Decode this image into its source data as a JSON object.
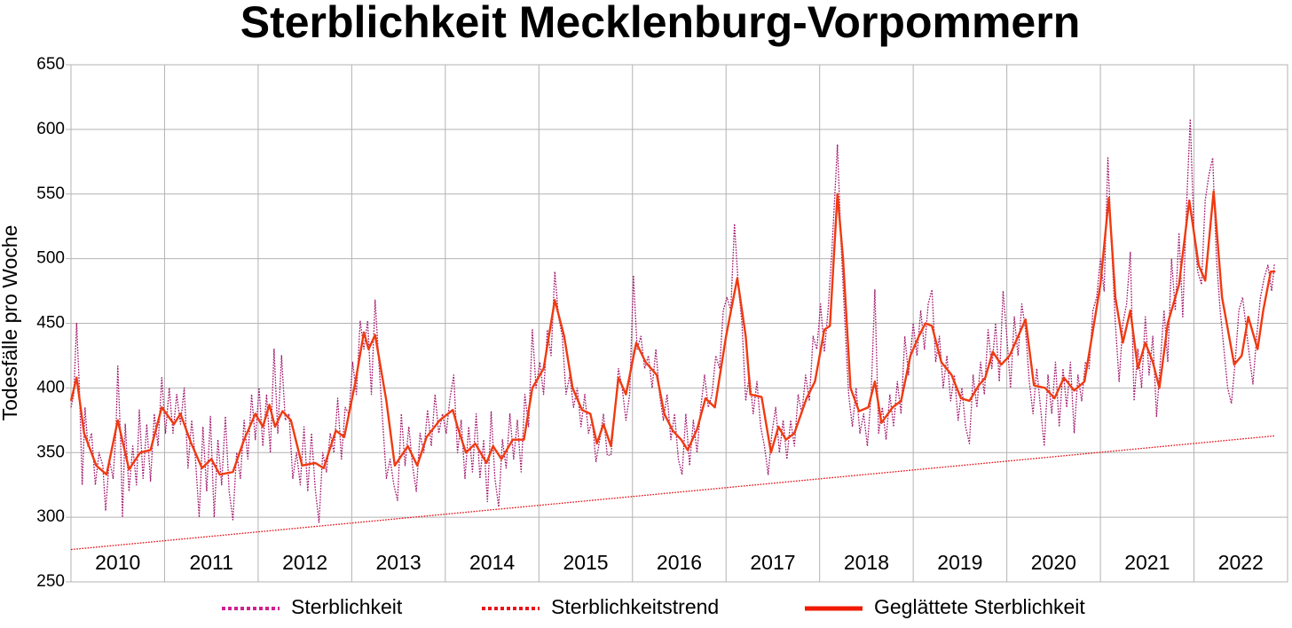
{
  "chart_data": {
    "type": "line",
    "title": "Sterblichkeit Mecklenburg-Vorpommern",
    "y_label": "Todesfälle pro Woche",
    "xlim": [
      2010,
      2023
    ],
    "ylim": [
      250,
      650
    ],
    "yticks": [
      250,
      300,
      350,
      400,
      450,
      500,
      550,
      600,
      650
    ],
    "xticks": [
      {
        "value": 2010.5,
        "label": "2010"
      },
      {
        "value": 2011.5,
        "label": "2011"
      },
      {
        "value": 2012.5,
        "label": "2012"
      },
      {
        "value": 2013.5,
        "label": "2013"
      },
      {
        "value": 2014.5,
        "label": "2014"
      },
      {
        "value": 2015.5,
        "label": "2015"
      },
      {
        "value": 2016.5,
        "label": "2016"
      },
      {
        "value": 2017.5,
        "label": "2017"
      },
      {
        "value": 2018.5,
        "label": "2018"
      },
      {
        "value": 2019.5,
        "label": "2019"
      },
      {
        "value": 2020.5,
        "label": "2020"
      },
      {
        "value": 2021.5,
        "label": "2021"
      },
      {
        "value": 2022.5,
        "label": "2022"
      }
    ],
    "x_gridlines": [
      2011,
      2012,
      2013,
      2014,
      2015,
      2016,
      2017,
      2018,
      2019,
      2020,
      2021,
      2022
    ],
    "grid": true,
    "legend": "bottom",
    "series": [
      {
        "name": "Sterblichkeit",
        "color": "#a0186e",
        "legend_color": "#d0208f",
        "dash": "dotted",
        "width": 1.3,
        "x": [
          2010.0,
          2010.03,
          2010.06,
          2010.09,
          2010.12,
          2010.15,
          2010.18,
          2010.22,
          2010.26,
          2010.3,
          2010.34,
          2010.37,
          2010.41,
          2010.45,
          2010.48,
          2010.5,
          2010.53,
          2010.55,
          2010.58,
          2010.62,
          2010.66,
          2010.7,
          2010.73,
          2010.77,
          2010.81,
          2010.85,
          2010.89,
          2010.93,
          2010.97,
          2011.01,
          2011.05,
          2011.09,
          2011.13,
          2011.17,
          2011.21,
          2011.25,
          2011.29,
          2011.33,
          2011.37,
          2011.41,
          2011.45,
          2011.49,
          2011.53,
          2011.57,
          2011.61,
          2011.65,
          2011.69,
          2011.73,
          2011.77,
          2011.81,
          2011.85,
          2011.89,
          2011.93,
          2011.97,
          2012.01,
          2012.05,
          2012.09,
          2012.13,
          2012.17,
          2012.21,
          2012.25,
          2012.29,
          2012.33,
          2012.37,
          2012.41,
          2012.45,
          2012.49,
          2012.53,
          2012.57,
          2012.61,
          2012.65,
          2012.69,
          2012.73,
          2012.77,
          2012.81,
          2012.85,
          2012.89,
          2012.93,
          2012.97,
          2013.01,
          2013.05,
          2013.09,
          2013.13,
          2013.17,
          2013.21,
          2013.25,
          2013.29,
          2013.33,
          2013.37,
          2013.41,
          2013.45,
          2013.49,
          2013.53,
          2013.57,
          2013.61,
          2013.65,
          2013.69,
          2013.73,
          2013.77,
          2013.81,
          2013.85,
          2013.89,
          2013.93,
          2013.97,
          2014.01,
          2014.05,
          2014.09,
          2014.13,
          2014.17,
          2014.21,
          2014.25,
          2014.29,
          2014.33,
          2014.37,
          2014.41,
          2014.45,
          2014.49,
          2014.53,
          2014.57,
          2014.61,
          2014.65,
          2014.69,
          2014.73,
          2014.77,
          2014.81,
          2014.85,
          2014.89,
          2014.93,
          2014.97,
          2015.01,
          2015.05,
          2015.09,
          2015.13,
          2015.17,
          2015.21,
          2015.25,
          2015.29,
          2015.33,
          2015.37,
          2015.41,
          2015.45,
          2015.49,
          2015.53,
          2015.57,
          2015.61,
          2015.65,
          2015.69,
          2015.73,
          2015.77,
          2015.81,
          2015.85,
          2015.89,
          2015.93,
          2015.97,
          2016.01,
          2016.05,
          2016.09,
          2016.13,
          2016.17,
          2016.21,
          2016.25,
          2016.29,
          2016.33,
          2016.37,
          2016.41,
          2016.45,
          2016.49,
          2016.53,
          2016.57,
          2016.61,
          2016.65,
          2016.69,
          2016.73,
          2016.77,
          2016.81,
          2016.85,
          2016.89,
          2016.93,
          2016.97,
          2017.01,
          2017.05,
          2017.09,
          2017.13,
          2017.17,
          2017.21,
          2017.25,
          2017.29,
          2017.33,
          2017.37,
          2017.41,
          2017.45,
          2017.49,
          2017.53,
          2017.57,
          2017.61,
          2017.65,
          2017.69,
          2017.73,
          2017.77,
          2017.81,
          2017.85,
          2017.89,
          2017.93,
          2017.97,
          2018.01,
          2018.05,
          2018.09,
          2018.13,
          2018.17,
          2018.19,
          2018.23,
          2018.27,
          2018.31,
          2018.35,
          2018.39,
          2018.43,
          2018.47,
          2018.51,
          2018.55,
          2018.59,
          2018.63,
          2018.67,
          2018.71,
          2018.75,
          2018.79,
          2018.83,
          2018.87,
          2018.91,
          2018.95,
          2019.0,
          2019.04,
          2019.08,
          2019.12,
          2019.16,
          2019.2,
          2019.24,
          2019.28,
          2019.32,
          2019.36,
          2019.4,
          2019.44,
          2019.48,
          2019.52,
          2019.56,
          2019.6,
          2019.64,
          2019.68,
          2019.72,
          2019.76,
          2019.8,
          2019.84,
          2019.88,
          2019.92,
          2019.96,
          2020.0,
          2020.04,
          2020.08,
          2020.12,
          2020.16,
          2020.2,
          2020.24,
          2020.28,
          2020.32,
          2020.36,
          2020.4,
          2020.44,
          2020.48,
          2020.52,
          2020.56,
          2020.6,
          2020.64,
          2020.68,
          2020.72,
          2020.76,
          2020.8,
          2020.84,
          2020.88,
          2020.92,
          2020.96,
          2021.0,
          2021.04,
          2021.08,
          2021.12,
          2021.16,
          2021.2,
          2021.24,
          2021.28,
          2021.32,
          2021.36,
          2021.4,
          2021.44,
          2021.48,
          2021.52,
          2021.56,
          2021.6,
          2021.64,
          2021.68,
          2021.72,
          2021.76,
          2021.8,
          2021.84,
          2021.88,
          2021.92,
          2021.96,
          2022.0,
          2022.04,
          2022.08,
          2022.12,
          2022.16,
          2022.2,
          2022.24,
          2022.28,
          2022.32,
          2022.36,
          2022.4,
          2022.44,
          2022.48,
          2022.52,
          2022.56,
          2022.6,
          2022.63,
          2022.67,
          2022.71,
          2022.75,
          2022.79,
          2022.83,
          2022.86
        ],
        "values": [
          385,
          395,
          450,
          400,
          325,
          385,
          355,
          365,
          325,
          350,
          340,
          305,
          345,
          330,
          365,
          417,
          360,
          300,
          372,
          320,
          355,
          325,
          383,
          330,
          372,
          328,
          380,
          355,
          408,
          365,
          400,
          365,
          395,
          372,
          400,
          338,
          375,
          345,
          300,
          370,
          320,
          378,
          300,
          360,
          325,
          378,
          320,
          298,
          350,
          330,
          375,
          345,
          395,
          360,
          400,
          355,
          395,
          350,
          430,
          365,
          425,
          375,
          380,
          330,
          350,
          325,
          370,
          320,
          365,
          322,
          296,
          350,
          335,
          365,
          350,
          392,
          345,
          385,
          380,
          420,
          395,
          452,
          430,
          452,
          395,
          468,
          420,
          375,
          330,
          345,
          325,
          313,
          380,
          340,
          370,
          340,
          320,
          365,
          350,
          383,
          355,
          395,
          365,
          380,
          365,
          392,
          410,
          350,
          375,
          330,
          370,
          335,
          380,
          330,
          360,
          312,
          382,
          330,
          308,
          360,
          338,
          380,
          345,
          375,
          335,
          395,
          370,
          445,
          400,
          420,
          395,
          445,
          425,
          490,
          455,
          440,
          395,
          410,
          385,
          400,
          370,
          395,
          365,
          375,
          343,
          360,
          380,
          348,
          348,
          380,
          415,
          400,
          375,
          395,
          487,
          430,
          440,
          415,
          425,
          400,
          430,
          395,
          375,
          395,
          360,
          380,
          345,
          333,
          380,
          340,
          375,
          350,
          385,
          410,
          385,
          395,
          425,
          415,
          460,
          470,
          460,
          527,
          480,
          450,
          390,
          410,
          380,
          405,
          370,
          355,
          333,
          365,
          385,
          350,
          375,
          345,
          375,
          355,
          395,
          380,
          410,
          390,
          440,
          430,
          465,
          428,
          460,
          505,
          560,
          588,
          510,
          450,
          395,
          370,
          400,
          365,
          380,
          355,
          395,
          476,
          365,
          385,
          360,
          395,
          370,
          405,
          380,
          440,
          410,
          450,
          425,
          460,
          430,
          465,
          476,
          420,
          440,
          400,
          425,
          390,
          410,
          375,
          400,
          370,
          357,
          410,
          385,
          420,
          395,
          445,
          415,
          450,
          405,
          475,
          440,
          400,
          455,
          425,
          465,
          445,
          405,
          380,
          415,
          385,
          355,
          410,
          380,
          420,
          370,
          415,
          385,
          420,
          365,
          410,
          390,
          420,
          415,
          460,
          470,
          500,
          475,
          578,
          510,
          450,
          405,
          450,
          465,
          505,
          390,
          430,
          400,
          455,
          410,
          440,
          378,
          420,
          460,
          420,
          500,
          460,
          520,
          455,
          540,
          608,
          520,
          490,
          480,
          545,
          565,
          578,
          500,
          460,
          430,
          400,
          388,
          420,
          460,
          470,
          445,
          420,
          403,
          440,
          470,
          485,
          495,
          475,
          496
        ]
      },
      {
        "name": "Sterblichkeitstrend",
        "color": "#e8141a",
        "legend_color": "#e8141a",
        "dash": "dotted",
        "width": 1.3,
        "x": [
          2010.0,
          2022.87
        ],
        "values": [
          275,
          363
        ]
      },
      {
        "name": "Geglättete Sterblichkeit",
        "color": "#f03a10",
        "legend_color": "#f01a00",
        "dash": "solid",
        "width": 2.4,
        "x": [
          2010.0,
          2010.06,
          2010.14,
          2010.27,
          2010.38,
          2010.5,
          2010.62,
          2010.74,
          2010.85,
          2010.97,
          2011.1,
          2011.17,
          2011.28,
          2011.4,
          2011.5,
          2011.59,
          2011.73,
          2011.85,
          2011.97,
          2012.05,
          2012.12,
          2012.18,
          2012.26,
          2012.35,
          2012.47,
          2012.61,
          2012.7,
          2012.83,
          2012.92,
          2013.04,
          2013.13,
          2013.18,
          2013.25,
          2013.37,
          2013.46,
          2013.6,
          2013.7,
          2013.8,
          2013.94,
          2014.08,
          2014.13,
          2014.22,
          2014.32,
          2014.44,
          2014.51,
          2014.6,
          2014.72,
          2014.84,
          2014.93,
          2015.05,
          2015.17,
          2015.27,
          2015.36,
          2015.46,
          2015.55,
          2015.62,
          2015.69,
          2015.77,
          2015.85,
          2015.93,
          2016.04,
          2016.14,
          2016.26,
          2016.34,
          2016.43,
          2016.52,
          2016.59,
          2016.69,
          2016.78,
          2016.88,
          2017.0,
          2017.12,
          2017.21,
          2017.26,
          2017.38,
          2017.48,
          2017.56,
          2017.64,
          2017.73,
          2017.86,
          2017.95,
          2018.05,
          2018.11,
          2018.19,
          2018.25,
          2018.33,
          2018.42,
          2018.52,
          2018.59,
          2018.66,
          2018.78,
          2018.87,
          2018.97,
          2019.06,
          2019.13,
          2019.2,
          2019.3,
          2019.41,
          2019.51,
          2019.6,
          2019.7,
          2019.77,
          2019.85,
          2019.94,
          2020.03,
          2020.2,
          2020.29,
          2020.41,
          2020.51,
          2020.61,
          2020.72,
          2020.83,
          2020.91,
          2021.0,
          2021.09,
          2021.16,
          2021.24,
          2021.32,
          2021.4,
          2021.48,
          2021.56,
          2021.63,
          2021.72,
          2021.84,
          2021.95,
          2022.05,
          2022.12,
          2022.21,
          2022.3,
          2022.43,
          2022.51,
          2022.58,
          2022.68,
          2022.74,
          2022.82,
          2022.87
        ],
        "values": [
          390,
          408,
          365,
          340,
          333,
          375,
          337,
          350,
          352,
          385,
          372,
          380,
          358,
          338,
          345,
          333,
          335,
          360,
          380,
          370,
          387,
          370,
          382,
          375,
          340,
          342,
          338,
          367,
          362,
          405,
          443,
          430,
          441,
          390,
          340,
          355,
          340,
          362,
          375,
          383,
          370,
          350,
          357,
          342,
          355,
          345,
          360,
          360,
          400,
          415,
          468,
          440,
          400,
          383,
          380,
          357,
          372,
          355,
          408,
          395,
          435,
          420,
          410,
          380,
          367,
          360,
          352,
          368,
          392,
          385,
          440,
          485,
          440,
          395,
          393,
          350,
          370,
          360,
          365,
          392,
          405,
          445,
          448,
          550,
          500,
          400,
          382,
          385,
          405,
          373,
          385,
          390,
          425,
          440,
          450,
          448,
          420,
          410,
          392,
          390,
          402,
          408,
          428,
          418,
          425,
          453,
          402,
          400,
          392,
          408,
          398,
          405,
          440,
          480,
          547,
          470,
          435,
          460,
          415,
          435,
          420,
          400,
          450,
          480,
          545,
          495,
          483,
          552,
          470,
          418,
          425,
          455,
          430,
          460,
          490,
          490
        ]
      }
    ]
  }
}
